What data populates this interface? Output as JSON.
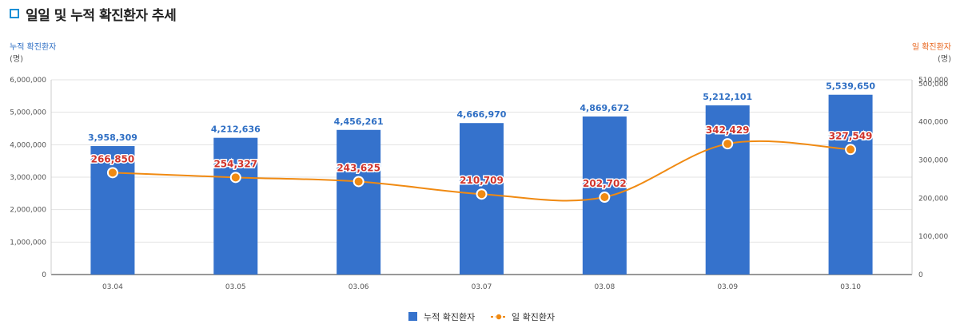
{
  "header": {
    "title": "일일 및 누적 확진환자 추세"
  },
  "colors": {
    "bar": "#3572cc",
    "line": "#f08a12",
    "point_label": "#d0342c",
    "left_axis_label": "#2f6fc4",
    "right_axis_label": "#e8651d"
  },
  "chart_data": {
    "type": "bar",
    "categories": [
      "03.04",
      "03.05",
      "03.06",
      "03.07",
      "03.08",
      "03.09",
      "03.10"
    ],
    "series": [
      {
        "name": "누적 확진환자",
        "type": "bar",
        "axis": "left",
        "values": [
          3958309,
          4212636,
          4456261,
          4666970,
          4869672,
          5212101,
          5539650
        ],
        "labels": [
          "3,958,309",
          "4,212,636",
          "4,456,261",
          "4,666,970",
          "4,869,672",
          "5,212,101",
          "5,539,650"
        ]
      },
      {
        "name": "일 확진환자",
        "type": "line",
        "axis": "right",
        "values": [
          266850,
          254327,
          243625,
          210709,
          202702,
          342429,
          327549
        ],
        "labels": [
          "266,850",
          "254,327",
          "243,625",
          "210,709",
          "202,702",
          "342,429",
          "327,549"
        ]
      }
    ],
    "left_axis": {
      "label": "누적 확진환자",
      "unit": "(명)",
      "ylim": [
        0,
        6000000
      ],
      "ticks": [
        "0",
        "1,000,000",
        "2,000,000",
        "3,000,000",
        "4,000,000",
        "5,000,000",
        "6,000,000"
      ]
    },
    "right_axis": {
      "label": "일 확진환자",
      "unit": "(명)",
      "ylim": [
        0,
        510000
      ],
      "ticks": [
        "0",
        "100,000",
        "200,000",
        "300,000",
        "400,000",
        "500,000",
        "510,000"
      ]
    },
    "legend": {
      "position": "bottom",
      "items": [
        "누적 확진환자",
        "일 확진환자"
      ]
    },
    "grid": true
  }
}
